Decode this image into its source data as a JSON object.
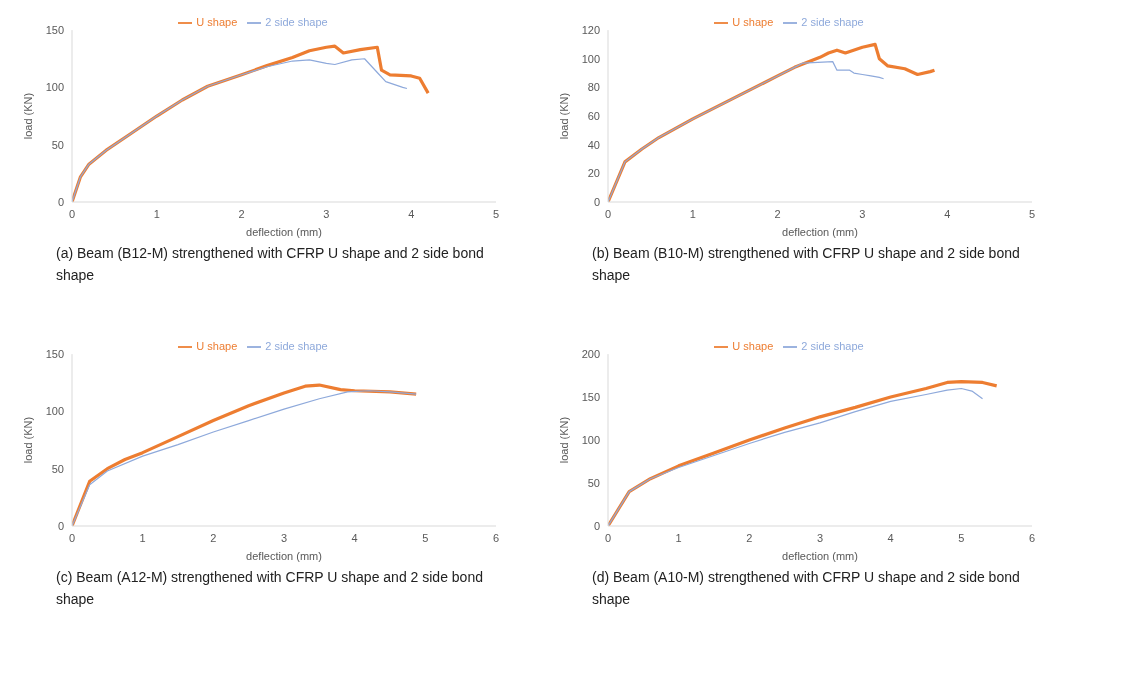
{
  "chart_data": [
    {
      "type": "line",
      "title": "(a) Beam (B12-M) strengthened with CFRP U shape and 2 side bond shape",
      "xlabel": "deflection (mm)",
      "ylabel": "load (KN)",
      "xlim": [
        0,
        5
      ],
      "xticks": [
        0,
        1,
        2,
        3,
        4,
        5
      ],
      "ylim": [
        0,
        150
      ],
      "yticks": [
        0,
        50,
        100,
        150
      ],
      "legend": "top",
      "series": [
        {
          "name": "U shape",
          "color": "#ed7d31",
          "x": [
            0,
            0.1,
            0.2,
            0.4,
            0.7,
            1,
            1.3,
            1.6,
            1.8,
            2,
            2.3,
            2.6,
            2.8,
            3.0,
            3.1,
            3.2,
            3.4,
            3.6,
            3.65,
            3.75,
            4.0,
            4.1,
            4.2
          ],
          "values": [
            0,
            22,
            33,
            45,
            60,
            75,
            89,
            101,
            106,
            111,
            119,
            126,
            132,
            135,
            136,
            130,
            133,
            135,
            115,
            111,
            110,
            108,
            95
          ]
        },
        {
          "name": "2 side shape",
          "color": "#8ea9db",
          "x": [
            0,
            0.1,
            0.2,
            0.4,
            0.7,
            1,
            1.3,
            1.6,
            1.8,
            2,
            2.3,
            2.6,
            2.8,
            3.0,
            3.1,
            3.3,
            3.45,
            3.6,
            3.7,
            3.9,
            3.95
          ],
          "values": [
            0,
            22,
            33,
            45,
            60,
            75,
            89,
            101,
            106,
            111,
            118,
            123,
            124,
            121,
            120,
            124,
            125,
            113,
            105,
            100,
            99
          ]
        }
      ]
    },
    {
      "type": "line",
      "title": "(b)  Beam (B10-M)  strengthened with CFRP U shape and 2 side bond shape",
      "xlabel": "deflection (mm)",
      "ylabel": "load (KN)",
      "xlim": [
        0,
        5
      ],
      "xticks": [
        0,
        1,
        2,
        3,
        4,
        5
      ],
      "ylim": [
        0,
        120
      ],
      "yticks": [
        0,
        20,
        40,
        60,
        80,
        100,
        120
      ],
      "legend": "top",
      "series": [
        {
          "name": "U shape",
          "color": "#ed7d31",
          "x": [
            0,
            0.2,
            0.4,
            0.6,
            1,
            1.5,
            2,
            2.2,
            2.5,
            2.6,
            2.7,
            2.8,
            3.0,
            3.15,
            3.2,
            3.3,
            3.5,
            3.65,
            3.8,
            3.85
          ],
          "values": [
            0,
            28,
            37,
            45,
            58,
            73,
            88,
            94,
            101,
            104,
            106,
            104,
            108,
            110,
            100,
            95,
            93,
            89,
            91,
            92
          ]
        },
        {
          "name": "2 side shape",
          "color": "#8ea9db",
          "x": [
            0,
            0.2,
            0.4,
            0.6,
            1,
            1.5,
            2,
            2.2,
            2.3,
            2.65,
            2.7,
            2.85,
            2.9,
            3.0,
            3.1,
            3.2,
            3.25
          ],
          "values": [
            0,
            28,
            37,
            45,
            58,
            73,
            88,
            94,
            97,
            98,
            92,
            92,
            90,
            89,
            88,
            87,
            86
          ]
        }
      ]
    },
    {
      "type": "line",
      "title": "(c) Beam (A12-M) strengthened with CFRP U shape and 2 side bond shape",
      "xlabel": "deflection (mm)",
      "ylabel": "load (KN)",
      "xlim": [
        0,
        6
      ],
      "xticks": [
        0,
        1,
        2,
        3,
        4,
        5,
        6
      ],
      "ylim": [
        0,
        150
      ],
      "yticks": [
        0,
        50,
        100,
        150
      ],
      "legend": "top",
      "series": [
        {
          "name": "U shape",
          "color": "#ed7d31",
          "x": [
            0,
            0.25,
            0.5,
            0.75,
            1,
            1.5,
            2,
            2.5,
            3,
            3.3,
            3.5,
            3.8,
            4,
            4.5,
            4.87
          ],
          "values": [
            0,
            39,
            50,
            58,
            64,
            78,
            92,
            105,
            116,
            122,
            123,
            119,
            118,
            117,
            115
          ]
        },
        {
          "name": "2 side shape",
          "color": "#8ea9db",
          "x": [
            0,
            0.25,
            0.5,
            1,
            1.5,
            2,
            2.5,
            3,
            3.5,
            3.9,
            4.2,
            4.5,
            4.87
          ],
          "values": [
            0,
            36,
            48,
            61,
            71,
            82,
            92,
            102,
            111,
            117,
            118,
            117,
            115
          ]
        }
      ]
    },
    {
      "type": "line",
      "title": "(d) Beam (A10-M) strengthened with CFRP U shape and 2 side bond shape",
      "xlabel": "deflection (mm)",
      "ylabel": "load (KN)",
      "xlim": [
        0,
        6
      ],
      "xticks": [
        0,
        1,
        2,
        3,
        4,
        5,
        6
      ],
      "ylim": [
        0,
        200
      ],
      "yticks": [
        0,
        50,
        100,
        150,
        200
      ],
      "legend": "top",
      "series": [
        {
          "name": "U shape",
          "color": "#ed7d31",
          "x": [
            0,
            0.3,
            0.6,
            1,
            1.5,
            2,
            2.5,
            3,
            3.5,
            4,
            4.5,
            4.8,
            5,
            5.3,
            5.5
          ],
          "values": [
            0,
            40,
            55,
            70,
            85,
            100,
            114,
            127,
            138,
            150,
            160,
            167,
            168,
            167,
            163
          ]
        },
        {
          "name": "2 side shape",
          "color": "#8ea9db",
          "x": [
            0,
            0.3,
            0.6,
            1,
            1.5,
            2,
            2.5,
            3,
            3.5,
            4,
            4.5,
            4.8,
            5,
            5.15,
            5.3
          ],
          "values": [
            0,
            40,
            55,
            68,
            82,
            96,
            109,
            120,
            133,
            145,
            153,
            158,
            160,
            157,
            148
          ]
        }
      ]
    }
  ]
}
